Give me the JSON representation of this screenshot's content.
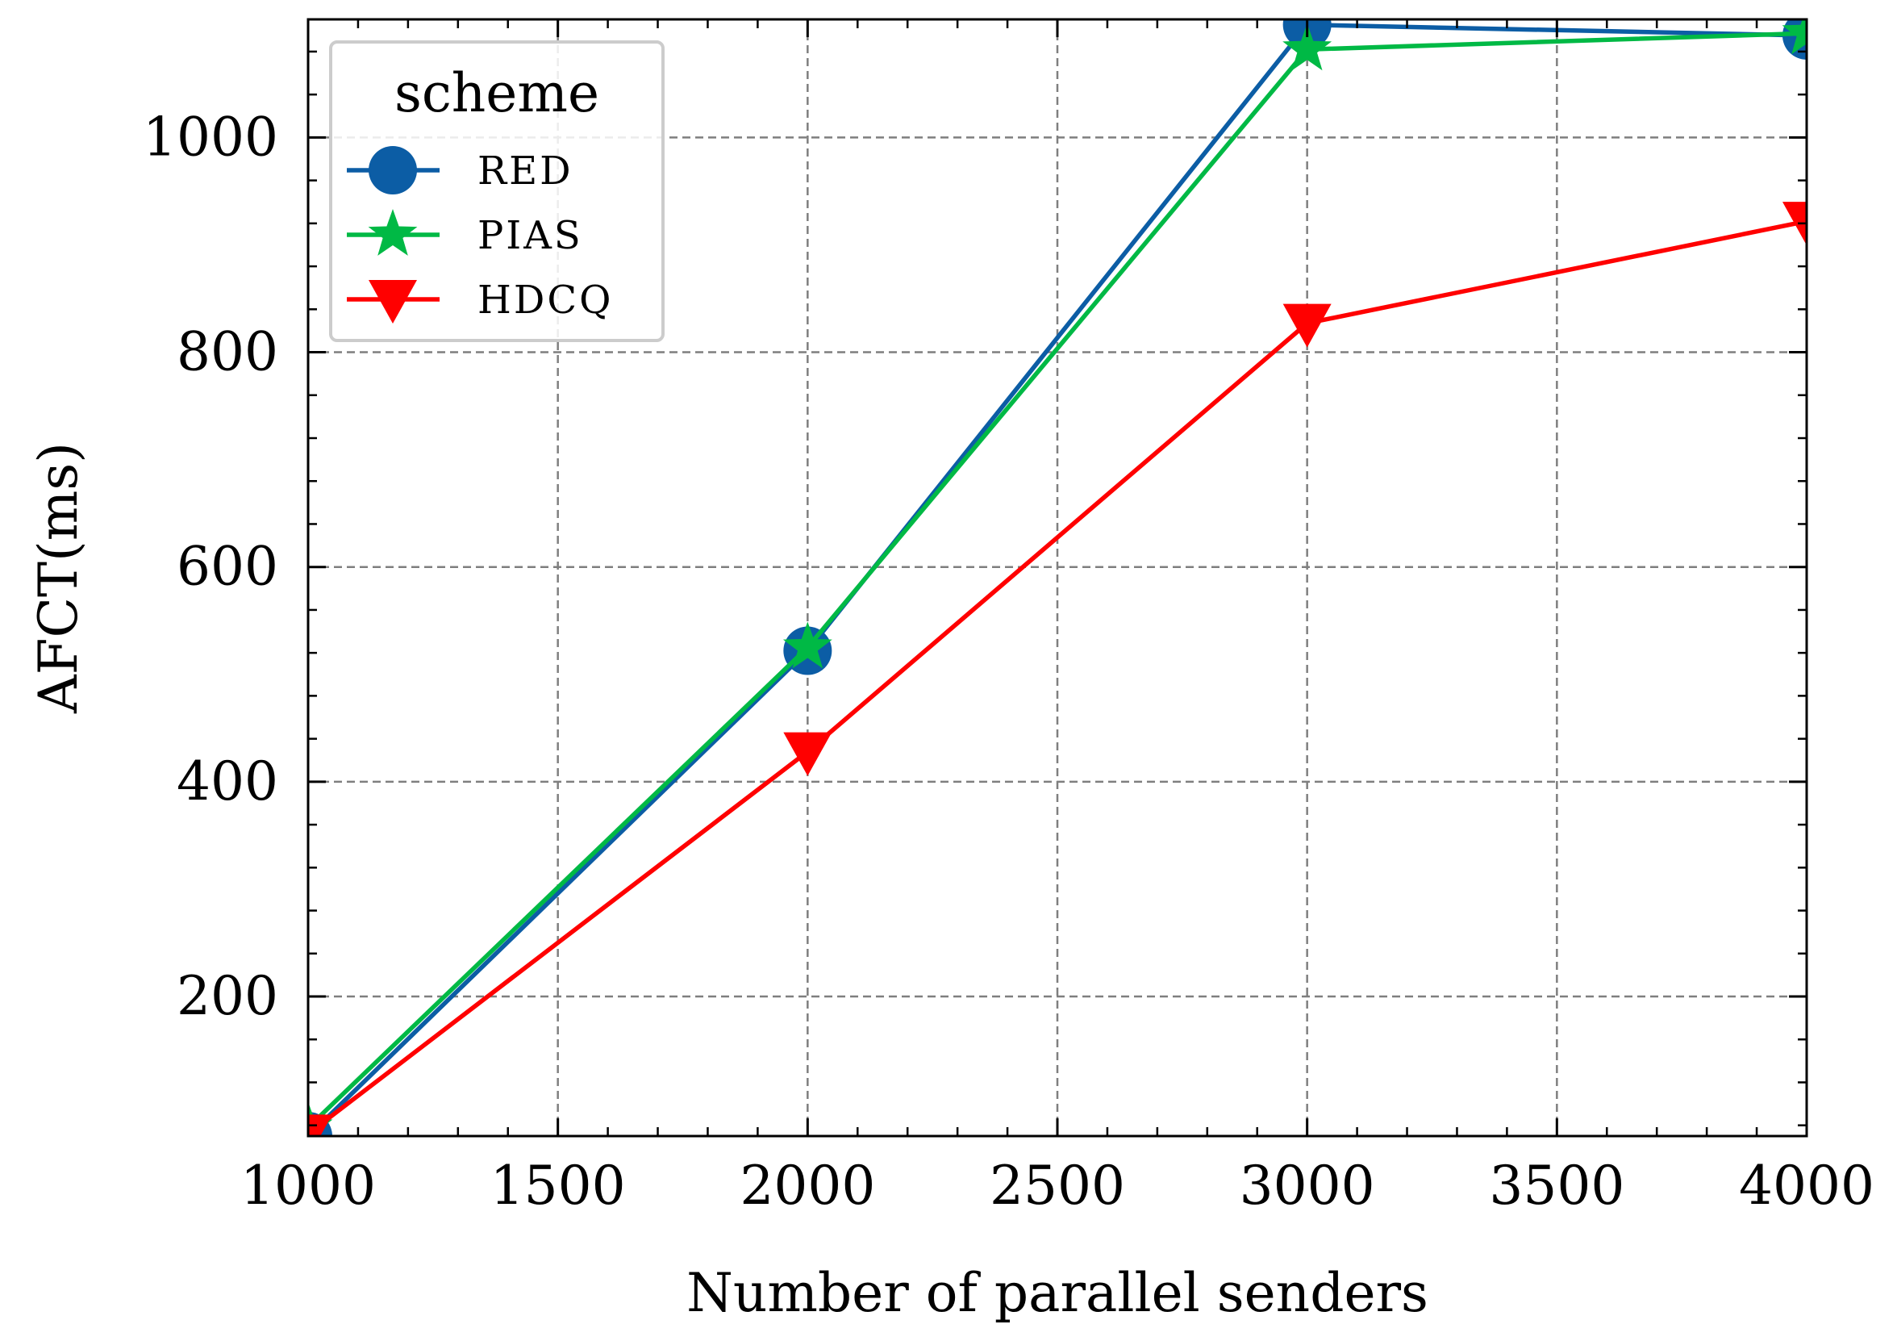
{
  "chart_data": {
    "type": "line",
    "title": "",
    "xlabel": "Number of parallel senders",
    "ylabel": "AFCT(ms)",
    "xlim": [
      1000,
      4000
    ],
    "ylim": [
      70,
      1110
    ],
    "xticks": [
      1000,
      1500,
      2000,
      2500,
      3000,
      3500,
      4000
    ],
    "yticks": [
      200,
      400,
      600,
      800,
      1000
    ],
    "grid": true,
    "legend": {
      "title": "scheme",
      "placement": "top-left"
    },
    "x": [
      1000,
      2000,
      3000,
      4000
    ],
    "series": [
      {
        "name": "RED",
        "color": "#0C5DA5",
        "marker": "circle",
        "values": [
          70,
          522,
          1105,
          1095
        ]
      },
      {
        "name": "PIAS",
        "color": "#00B945",
        "marker": "star",
        "values": [
          78,
          525,
          1082,
          1097
        ]
      },
      {
        "name": "HDCQ",
        "color": "#FF0000",
        "marker": "triangle-down",
        "values": [
          72,
          428,
          827,
          922
        ]
      }
    ]
  }
}
